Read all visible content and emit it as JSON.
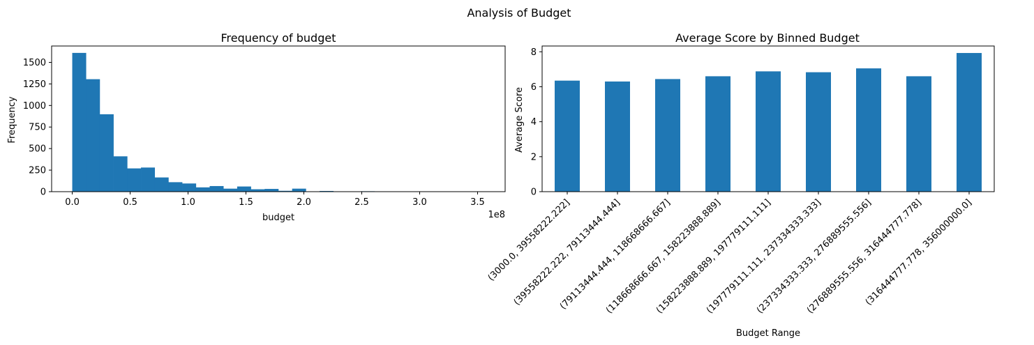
{
  "figure": {
    "title": "Analysis of Budget"
  },
  "chart_data": [
    {
      "type": "bar",
      "subtype": "histogram",
      "title": "Frequency of budget",
      "xlabel": "budget",
      "ylabel": "Frequency",
      "x_offset_label": "1e8",
      "bin_width": 0.1186666,
      "bin_start": 0.0,
      "xlim": [
        -0.1779999,
        3.7379999
      ],
      "ylim": [
        0,
        1690
      ],
      "xticks": [
        0.0,
        0.5,
        1.0,
        1.5,
        2.0,
        2.5,
        3.0,
        3.5
      ],
      "xtick_labels": [
        "0.0",
        "0.5",
        "1.0",
        "1.5",
        "2.0",
        "2.5",
        "3.0",
        "3.5"
      ],
      "yticks": [
        0,
        250,
        500,
        750,
        1000,
        1250,
        1500
      ],
      "ytick_labels": [
        "0",
        "250",
        "500",
        "750",
        "1000",
        "1250",
        "1500"
      ],
      "values": [
        1610,
        1305,
        898,
        410,
        270,
        280,
        165,
        110,
        95,
        50,
        65,
        35,
        60,
        28,
        32,
        10,
        35,
        2,
        8,
        1,
        1,
        5,
        0,
        2,
        0,
        0,
        1,
        0,
        0,
        1
      ],
      "color": "#1f77b4",
      "grid": false
    },
    {
      "type": "bar",
      "title": "Average Score by Binned Budget",
      "xlabel": "Budget Range",
      "ylabel": "Average Score",
      "categories": [
        "(3000.0, 39558222.222]",
        "(39558222.222, 79113444.444]",
        "(79113444.444, 118668666.667]",
        "(118668666.667, 158223888.889]",
        "(158223888.889, 197779111.111]",
        "(197779111.111, 237334333.333]",
        "(237334333.333, 276889555.556]",
        "(276889555.556, 316444777.778]",
        "(316444777.778, 356000000.0]"
      ],
      "values": [
        6.35,
        6.3,
        6.44,
        6.6,
        6.88,
        6.83,
        7.05,
        6.6,
        7.93
      ],
      "ylim": [
        0,
        8.33
      ],
      "yticks": [
        0,
        2,
        4,
        6,
        8
      ],
      "ytick_labels": [
        "0",
        "2",
        "4",
        "6",
        "8"
      ],
      "xtick_rotation_deg": 45,
      "color": "#1f77b4",
      "grid": false
    }
  ]
}
